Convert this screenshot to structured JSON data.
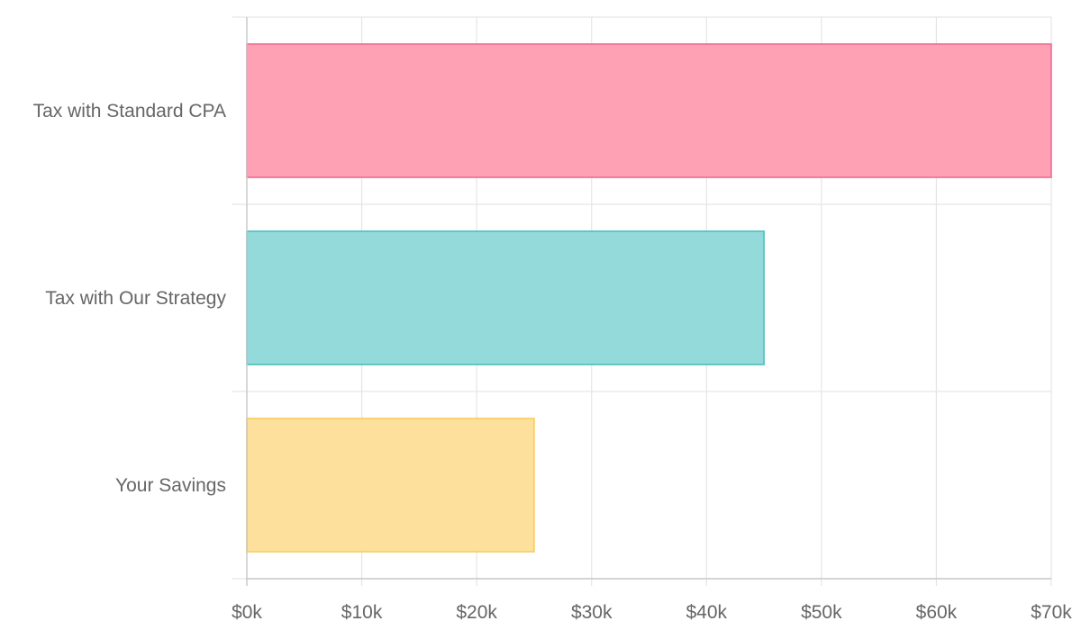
{
  "chart_data": {
    "type": "bar",
    "orientation": "horizontal",
    "categories": [
      "Tax with Standard CPA",
      "Tax with Our Strategy",
      "Your Savings"
    ],
    "values": [
      70000,
      45000,
      25000
    ],
    "xlim": [
      0,
      70000
    ],
    "x_ticks": [
      0,
      10000,
      20000,
      30000,
      40000,
      50000,
      60000,
      70000
    ],
    "x_tick_labels": [
      "$0k",
      "$10k",
      "$20k",
      "$30k",
      "$40k",
      "$50k",
      "$60k",
      "$70k"
    ],
    "grid": true,
    "legend": "none",
    "bar_colors": [
      {
        "fill": "#ff9fb4",
        "stroke": "#ef6b90"
      },
      {
        "fill": "#93d9d9",
        "stroke": "#4bbfbf"
      },
      {
        "fill": "#fddf9a",
        "stroke": "#f9cc61"
      }
    ]
  }
}
